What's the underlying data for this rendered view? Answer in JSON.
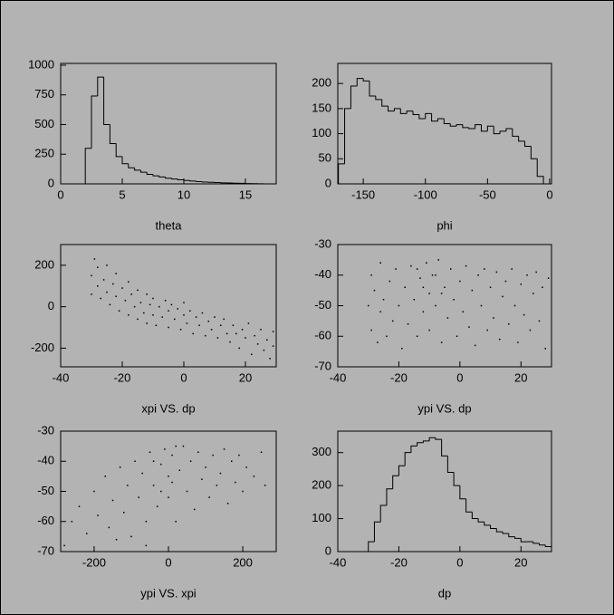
{
  "chart_data": [
    {
      "type": "histogram",
      "xlabel": "theta",
      "color": "#000000",
      "bins": [
        0,
        0.5,
        1,
        1.5,
        2,
        2.5,
        3,
        3.5,
        4,
        4.5,
        5,
        5.5,
        6,
        6.5,
        7,
        7.5,
        8,
        8.5,
        9,
        9.5,
        10,
        10.5,
        11,
        11.5,
        12,
        12.5,
        13,
        13.5,
        14,
        14.5,
        15,
        15.5,
        16,
        16.5,
        17,
        17.5
      ],
      "values": [
        0,
        0,
        0,
        0,
        300,
        740,
        900,
        500,
        340,
        230,
        170,
        135,
        115,
        98,
        80,
        68,
        58,
        48,
        41,
        34,
        29,
        24,
        19,
        15,
        13,
        11,
        9,
        8,
        6,
        5,
        3,
        2,
        1,
        0,
        0
      ],
      "xlim": [
        0,
        17.5
      ],
      "ylim": [
        0,
        1015
      ],
      "xticks": [
        0,
        5,
        10,
        15
      ],
      "yticks": [
        0,
        250,
        500,
        750,
        1000
      ]
    },
    {
      "type": "histogram",
      "xlabel": "phi",
      "color": "#000000",
      "bins": [
        -170,
        -165,
        -160,
        -155,
        -150,
        -145,
        -140,
        -135,
        -130,
        -125,
        -120,
        -115,
        -110,
        -105,
        -100,
        -95,
        -90,
        -85,
        -80,
        -75,
        -70,
        -65,
        -60,
        -55,
        -50,
        -45,
        -40,
        -35,
        -30,
        -25,
        -20,
        -15,
        -10,
        -5
      ],
      "values": [
        40,
        150,
        195,
        210,
        205,
        175,
        168,
        155,
        145,
        150,
        140,
        145,
        138,
        130,
        140,
        125,
        130,
        120,
        115,
        118,
        112,
        110,
        118,
        105,
        115,
        100,
        105,
        110,
        95,
        85,
        75,
        50,
        15
      ],
      "xlim": [
        -170.5,
        1.5
      ],
      "ylim": [
        0,
        240
      ],
      "xticks": [
        -150,
        -100,
        -50,
        0
      ],
      "yticks": [
        0,
        50,
        100,
        150,
        200
      ]
    },
    {
      "type": "scatter",
      "xlabel": "xpi VS. dp",
      "color": "#000000",
      "x": [
        -30,
        -30,
        -29,
        -28,
        -28,
        -27,
        -26,
        -25,
        -25,
        -24,
        -23,
        -22,
        -22,
        -21,
        -20,
        -19,
        -18,
        -18,
        -17,
        -16,
        -15,
        -15,
        -14,
        -13,
        -12,
        -12,
        -11,
        -10,
        -10,
        -9,
        -8,
        -7,
        -6,
        -5,
        -5,
        -4,
        -3,
        -2,
        -1,
        0,
        0,
        1,
        2,
        3,
        4,
        5,
        6,
        7,
        8,
        9,
        10,
        11,
        12,
        13,
        14,
        15,
        16,
        17,
        18,
        19,
        20,
        21,
        22,
        23,
        24,
        25,
        26,
        27,
        28,
        29,
        29
      ],
      "values": [
        150,
        60,
        230,
        100,
        190,
        40,
        130,
        70,
        200,
        10,
        110,
        50,
        160,
        -20,
        90,
        30,
        -40,
        120,
        60,
        0,
        -60,
        80,
        20,
        -30,
        60,
        -80,
        10,
        -40,
        40,
        -90,
        0,
        -50,
        30,
        -20,
        -100,
        10,
        -60,
        -10,
        -110,
        -40,
        20,
        -80,
        -20,
        -130,
        -50,
        -90,
        -30,
        -140,
        -70,
        -110,
        -50,
        -150,
        -90,
        -60,
        -130,
        -170,
        -90,
        -130,
        -200,
        -110,
        -150,
        -80,
        -230,
        -140,
        -180,
        -110,
        -210,
        -160,
        -250,
        -190,
        -120
      ],
      "xlim": [
        -40,
        30
      ],
      "ylim": [
        -290,
        300
      ],
      "xticks": [
        -40,
        -20,
        0,
        20
      ],
      "yticks": [
        -200,
        0,
        200
      ]
    },
    {
      "type": "scatter",
      "xlabel": "ypi VS. dp",
      "color": "#000000",
      "x": [
        -30,
        -29,
        -29,
        -28,
        -27,
        -26,
        -26,
        -25,
        -24,
        -23,
        -22,
        -21,
        -20,
        -19,
        -18,
        -17,
        -16,
        -15,
        -14,
        -13,
        -12,
        -11,
        -10,
        -10,
        -9,
        -8,
        -7,
        -6,
        -5,
        -4,
        -3,
        -2,
        -1,
        0,
        1,
        2,
        3,
        4,
        5,
        6,
        7,
        8,
        9,
        10,
        11,
        12,
        13,
        14,
        15,
        16,
        17,
        18,
        19,
        20,
        21,
        22,
        23,
        24,
        25,
        26,
        27,
        28,
        29,
        -12,
        -8,
        -14,
        -6
      ],
      "values": [
        -50,
        -40,
        -58,
        -45,
        -62,
        -36,
        -52,
        -48,
        -60,
        -42,
        -55,
        -38,
        -50,
        -64,
        -44,
        -56,
        -37,
        -48,
        -60,
        -41,
        -52,
        -36,
        -46,
        -58,
        -40,
        -50,
        -35,
        -62,
        -44,
        -54,
        -38,
        -48,
        -60,
        -42,
        -52,
        -37,
        -57,
        -45,
        -63,
        -40,
        -50,
        -38,
        -58,
        -44,
        -54,
        -39,
        -61,
        -47,
        -42,
        -56,
        -38,
        -50,
        -62,
        -43,
        -53,
        -40,
        -58,
        -46,
        -39,
        -55,
        -44,
        -64,
        -41,
        -44,
        -40,
        -38,
        -46
      ],
      "xlim": [
        -40,
        30
      ],
      "ylim": [
        -70,
        -30
      ],
      "xticks": [
        -40,
        -20,
        0,
        20
      ],
      "yticks": [
        -70,
        -60,
        -50,
        -40,
        -30
      ]
    },
    {
      "type": "scatter",
      "xlabel": "ypi VS. xpi",
      "color": "#000000",
      "x": [
        -280,
        -260,
        -240,
        -220,
        -200,
        -190,
        -170,
        -160,
        -150,
        -130,
        -120,
        -110,
        -100,
        -90,
        -80,
        -70,
        -60,
        -50,
        -40,
        -30,
        -20,
        -10,
        0,
        0,
        10,
        20,
        30,
        40,
        50,
        60,
        70,
        80,
        90,
        100,
        110,
        120,
        130,
        140,
        150,
        160,
        170,
        180,
        190,
        200,
        210,
        230,
        250,
        260,
        -140,
        -60,
        -20,
        10,
        -40,
        20
      ],
      "values": [
        -68,
        -60,
        -55,
        -64,
        -50,
        -58,
        -45,
        -62,
        -53,
        -42,
        -57,
        -48,
        -65,
        -40,
        -52,
        -44,
        -60,
        -37,
        -48,
        -55,
        -41,
        -36,
        -45,
        -52,
        -38,
        -60,
        -43,
        -35,
        -50,
        -40,
        -56,
        -37,
        -46,
        -42,
        -52,
        -38,
        -48,
        -44,
        -36,
        -54,
        -40,
        -47,
        -38,
        -50,
        -42,
        -45,
        -37,
        -48,
        -66,
        -68,
        -50,
        -47,
        -40,
        -35
      ],
      "xlim": [
        -290,
        290
      ],
      "ylim": [
        -70,
        -30
      ],
      "xticks": [
        -200,
        0,
        200
      ],
      "yticks": [
        -70,
        -60,
        -50,
        -40,
        -30
      ]
    },
    {
      "type": "histogram",
      "xlabel": "dp",
      "color": "#000000",
      "bins": [
        -30,
        -28,
        -26,
        -24,
        -22,
        -20,
        -18,
        -16,
        -14,
        -12,
        -10,
        -8,
        -6,
        -4,
        -2,
        0,
        2,
        4,
        6,
        8,
        10,
        12,
        14,
        16,
        18,
        20,
        22,
        24,
        26,
        28,
        30
      ],
      "values": [
        30,
        90,
        140,
        190,
        230,
        260,
        300,
        320,
        330,
        335,
        345,
        340,
        290,
        240,
        200,
        160,
        120,
        100,
        90,
        80,
        70,
        60,
        55,
        45,
        40,
        30,
        30,
        25,
        20,
        15
      ],
      "xlim": [
        -40,
        30
      ],
      "ylim": [
        0,
        365
      ],
      "xticks": [
        -40,
        -20,
        0,
        20
      ],
      "yticks": [
        0,
        100,
        200,
        300
      ]
    }
  ]
}
